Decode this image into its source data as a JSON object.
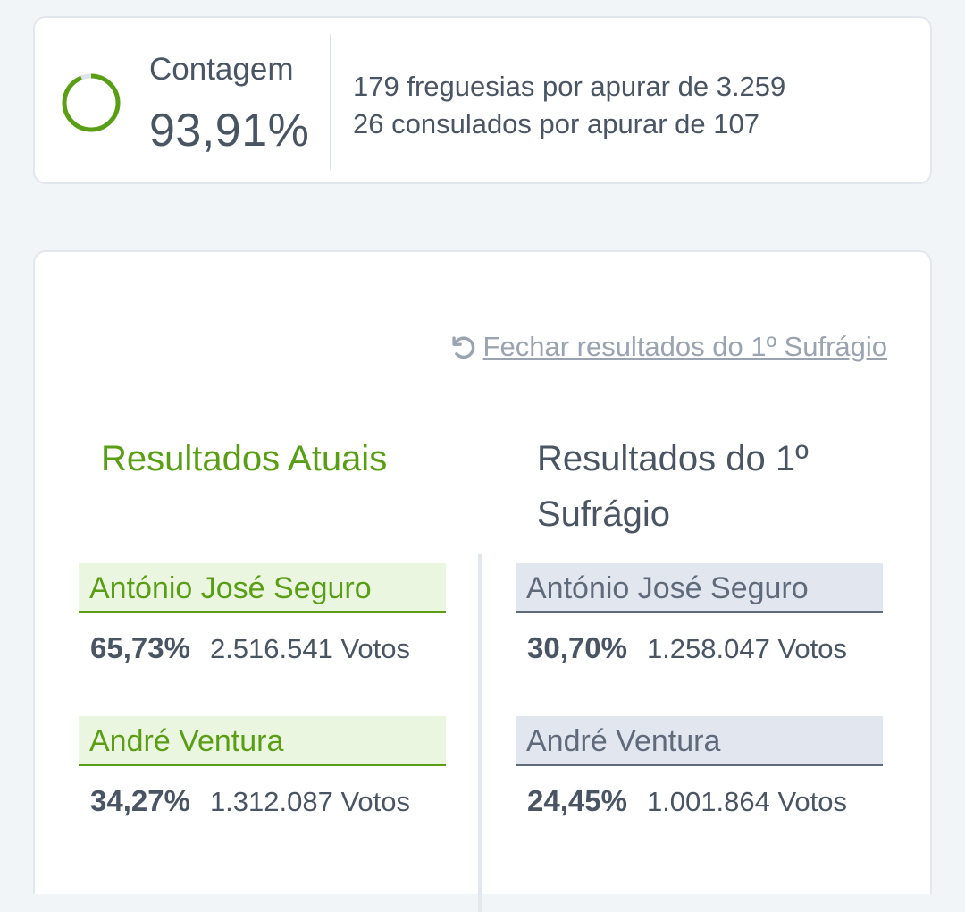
{
  "counting": {
    "label": "Contagem",
    "percent": "93,91%",
    "progress_fraction": 0.9391,
    "line1": "179 freguesias por apurar de 3.259",
    "line2": "26 consulados por apurar de 107",
    "ring_color": "#5a9e16"
  },
  "results": {
    "close_link": "Fechar resultados do 1º Sufrágio",
    "current": {
      "title": "Resultados Atuais",
      "candidates": [
        {
          "name": "António José Seguro",
          "percent": "65,73%",
          "votes": "2.516.541 Votos"
        },
        {
          "name": "André Ventura",
          "percent": "34,27%",
          "votes": "1.312.087 Votos"
        }
      ]
    },
    "first": {
      "title": "Resultados do 1º Sufrágio",
      "candidates": [
        {
          "name": "António José Seguro",
          "percent": "30,70%",
          "votes": "1.258.047 Votos"
        },
        {
          "name": "André Ventura",
          "percent": "24,45%",
          "votes": "1.001.864 Votos"
        }
      ]
    }
  },
  "colors": {
    "accent_green": "#5a9e16",
    "muted_slate": "#5f6b7b",
    "text": "#4a5563"
  }
}
